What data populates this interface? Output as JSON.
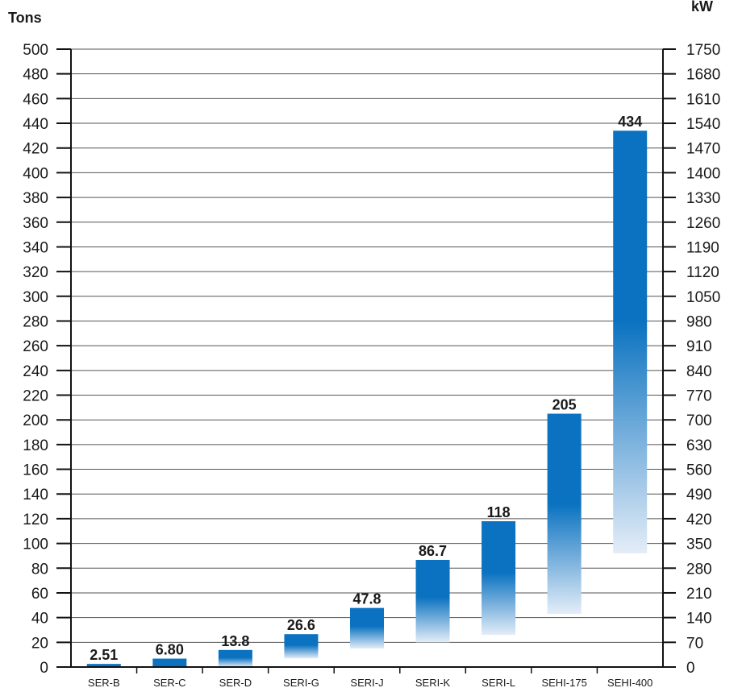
{
  "chart_data": {
    "type": "bar",
    "categories": [
      "SER-B",
      "SER-C",
      "SER-D",
      "SERI-G",
      "SERI-J",
      "SERI-K",
      "SERI-L",
      "SEHI-175",
      "SEHI-400"
    ],
    "ranges": [
      [
        0,
        2.51
      ],
      [
        0,
        6.8
      ],
      [
        0,
        13.8
      ],
      [
        7,
        26.6
      ],
      [
        15,
        47.8
      ],
      [
        20,
        86.7
      ],
      [
        26,
        118
      ],
      [
        43,
        205
      ],
      [
        92,
        434
      ]
    ],
    "value_labels": [
      "2.51",
      "6.80",
      "13.8",
      "26.6",
      "47.8",
      "86.7",
      "118",
      "205",
      "434"
    ],
    "ylabel_left": "Tons",
    "ylabel_right": "kW",
    "ylim": [
      0,
      500
    ],
    "ylim_right": [
      0,
      1750
    ],
    "yticks_left": [
      0,
      20,
      40,
      60,
      80,
      100,
      120,
      140,
      160,
      180,
      200,
      220,
      240,
      260,
      280,
      300,
      320,
      340,
      360,
      380,
      400,
      420,
      440,
      460,
      480,
      500
    ],
    "yticks_right": [
      0,
      70,
      140,
      210,
      280,
      350,
      420,
      490,
      560,
      630,
      700,
      770,
      840,
      910,
      980,
      1050,
      1120,
      1190,
      1260,
      1330,
      1400,
      1470,
      1540,
      1610,
      1680,
      1750
    ],
    "grid": true,
    "bar_color": "#0a72c0",
    "bar_fade_color": "#e4edf8"
  }
}
